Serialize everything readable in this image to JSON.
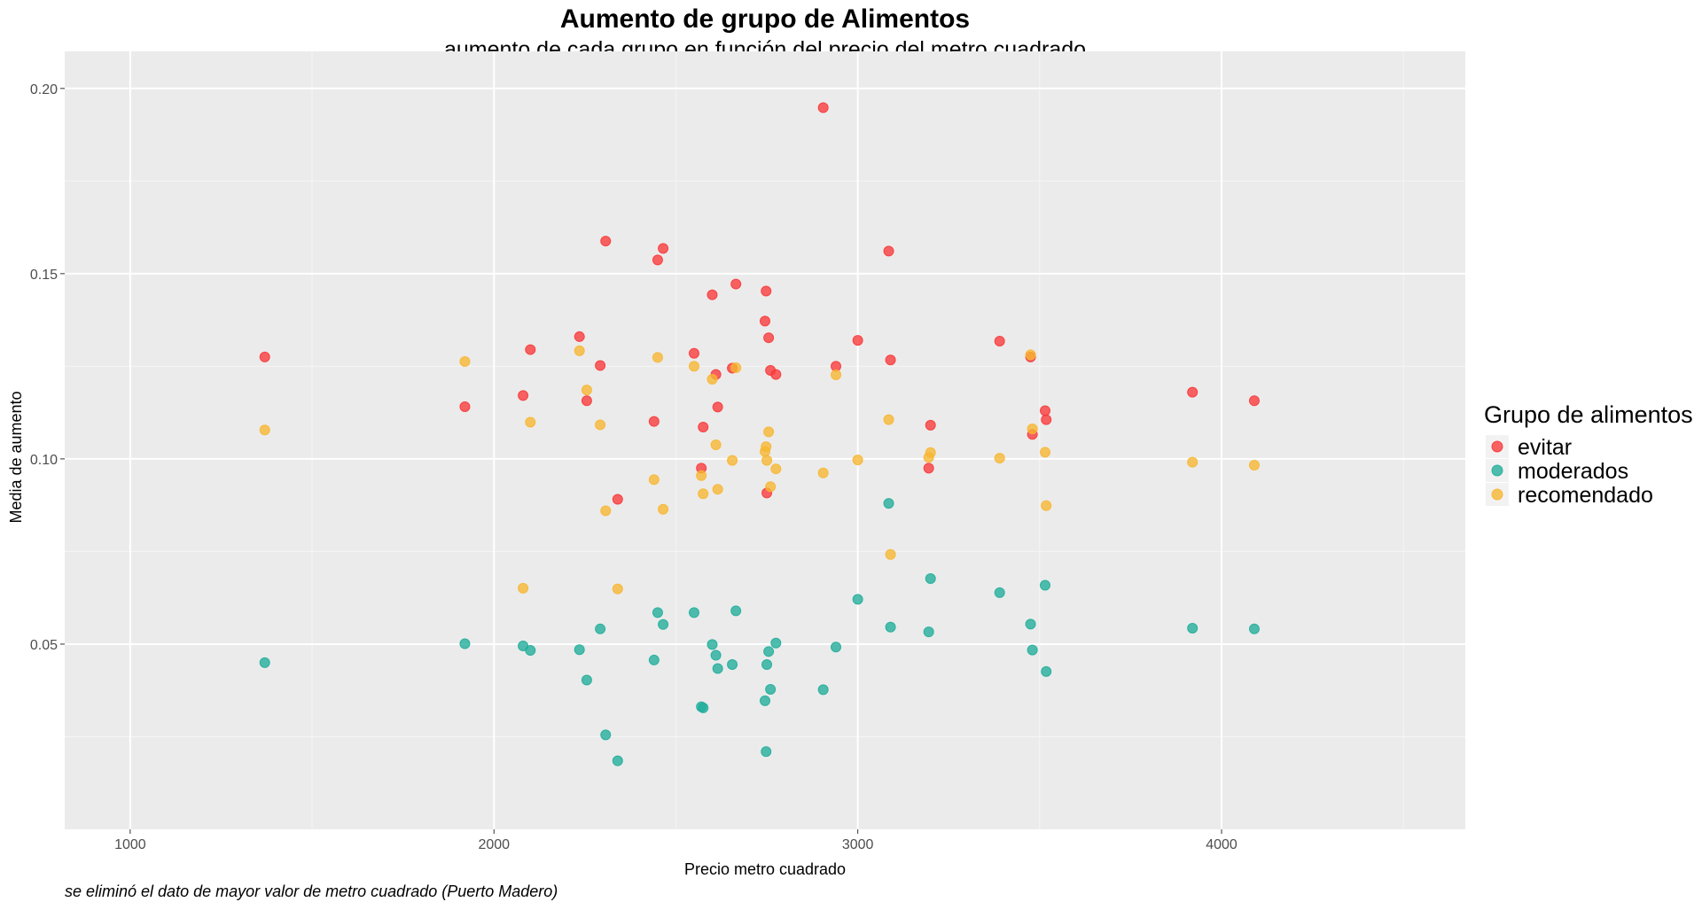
{
  "chart_data": {
    "type": "scatter",
    "title": "Aumento de grupo de Alimentos",
    "subtitle": "aumento de cada grupo en función del precio del metro cuadrado",
    "xlabel": "Precio metro cuadrado",
    "ylabel": "Media de aumento",
    "caption": "se eliminó el dato de mayor valor de metro cuadrado (Puerto Madero)",
    "xlim": [
      820,
      4670
    ],
    "ylim": [
      0.0,
      0.21
    ],
    "xticks": [
      1000,
      2000,
      3000,
      4000
    ],
    "xtick_labels": [
      "1000",
      "2000",
      "3000",
      "4000"
    ],
    "yticks": [
      0.05,
      0.1,
      0.15,
      0.2
    ],
    "ytick_labels": [
      "0.05",
      "0.10",
      "0.15",
      "0.20"
    ],
    "grid": true,
    "legend_title": "Grupo de alimentos",
    "legend_position": "right",
    "series": [
      {
        "name": "evitar",
        "color": "#F8393A",
        "points": [
          [
            1370,
            0.1275
          ],
          [
            1920,
            0.1141
          ],
          [
            2080,
            0.1171
          ],
          [
            2100,
            0.1295
          ],
          [
            2235,
            0.133
          ],
          [
            2255,
            0.1157
          ],
          [
            2292,
            0.1252
          ],
          [
            2307,
            0.1588
          ],
          [
            2340,
            0.0891
          ],
          [
            2440,
            0.1101
          ],
          [
            2450,
            0.1537
          ],
          [
            2465,
            0.1568
          ],
          [
            2550,
            0.1285
          ],
          [
            2570,
            0.0975
          ],
          [
            2575,
            0.1086
          ],
          [
            2600,
            0.1443
          ],
          [
            2610,
            0.1228
          ],
          [
            2615,
            0.114
          ],
          [
            2655,
            0.1245
          ],
          [
            2665,
            0.1472
          ],
          [
            2745,
            0.1372
          ],
          [
            2748,
            0.1453
          ],
          [
            2750,
            0.0908
          ],
          [
            2755,
            0.1327
          ],
          [
            2760,
            0.1239
          ],
          [
            2775,
            0.1228
          ],
          [
            2905,
            0.1948
          ],
          [
            2940,
            0.125
          ],
          [
            3000,
            0.132
          ],
          [
            3085,
            0.1561
          ],
          [
            3090,
            0.1267
          ],
          [
            3195,
            0.0975
          ],
          [
            3200,
            0.1091
          ],
          [
            3390,
            0.1318
          ],
          [
            3475,
            0.1275
          ],
          [
            3480,
            0.1066
          ],
          [
            3515,
            0.113
          ],
          [
            3518,
            0.1106
          ],
          [
            3920,
            0.118
          ],
          [
            4090,
            0.1157
          ]
        ]
      },
      {
        "name": "moderados",
        "color": "#20AD9A",
        "points": [
          [
            1370,
            0.045
          ],
          [
            1920,
            0.0501
          ],
          [
            2080,
            0.0495
          ],
          [
            2100,
            0.0483
          ],
          [
            2235,
            0.0485
          ],
          [
            2255,
            0.0403
          ],
          [
            2292,
            0.0541
          ],
          [
            2307,
            0.0255
          ],
          [
            2340,
            0.0185
          ],
          [
            2440,
            0.0457
          ],
          [
            2450,
            0.0585
          ],
          [
            2465,
            0.0553
          ],
          [
            2550,
            0.0585
          ],
          [
            2570,
            0.0331
          ],
          [
            2575,
            0.0328
          ],
          [
            2600,
            0.0499
          ],
          [
            2610,
            0.047
          ],
          [
            2615,
            0.0434
          ],
          [
            2655,
            0.0445
          ],
          [
            2665,
            0.059
          ],
          [
            2745,
            0.0347
          ],
          [
            2748,
            0.021
          ],
          [
            2750,
            0.0445
          ],
          [
            2755,
            0.048
          ],
          [
            2760,
            0.0378
          ],
          [
            2775,
            0.0503
          ],
          [
            2905,
            0.0377
          ],
          [
            2940,
            0.0492
          ],
          [
            3000,
            0.0621
          ],
          [
            3085,
            0.088
          ],
          [
            3090,
            0.0546
          ],
          [
            3195,
            0.0533
          ],
          [
            3200,
            0.0677
          ],
          [
            3390,
            0.0639
          ],
          [
            3475,
            0.0554
          ],
          [
            3480,
            0.0484
          ],
          [
            3515,
            0.0659
          ],
          [
            3518,
            0.0426
          ],
          [
            3920,
            0.0543
          ],
          [
            4090,
            0.0541
          ]
        ]
      },
      {
        "name": "recomendado",
        "color": "#F7B631",
        "points": [
          [
            1370,
            0.1078
          ],
          [
            1920,
            0.1263
          ],
          [
            2080,
            0.0651
          ],
          [
            2100,
            0.1099
          ],
          [
            2235,
            0.1292
          ],
          [
            2255,
            0.1186
          ],
          [
            2292,
            0.1092
          ],
          [
            2307,
            0.086
          ],
          [
            2340,
            0.0649
          ],
          [
            2440,
            0.0944
          ],
          [
            2450,
            0.1274
          ],
          [
            2465,
            0.0864
          ],
          [
            2550,
            0.125
          ],
          [
            2570,
            0.0955
          ],
          [
            2575,
            0.0906
          ],
          [
            2600,
            0.1215
          ],
          [
            2610,
            0.1038
          ],
          [
            2615,
            0.0918
          ],
          [
            2655,
            0.0996
          ],
          [
            2665,
            0.1246
          ],
          [
            2745,
            0.102
          ],
          [
            2748,
            0.1033
          ],
          [
            2750,
            0.0996
          ],
          [
            2755,
            0.1073
          ],
          [
            2760,
            0.0925
          ],
          [
            2775,
            0.0973
          ],
          [
            2905,
            0.0962
          ],
          [
            2940,
            0.1227
          ],
          [
            3000,
            0.0997
          ],
          [
            3085,
            0.1106
          ],
          [
            3090,
            0.0742
          ],
          [
            3195,
            0.1004
          ],
          [
            3200,
            0.1017
          ],
          [
            3390,
            0.1002
          ],
          [
            3475,
            0.1281
          ],
          [
            3480,
            0.1081
          ],
          [
            3515,
            0.1018
          ],
          [
            3518,
            0.0874
          ],
          [
            3920,
            0.0991
          ],
          [
            4090,
            0.0983
          ]
        ]
      }
    ]
  }
}
